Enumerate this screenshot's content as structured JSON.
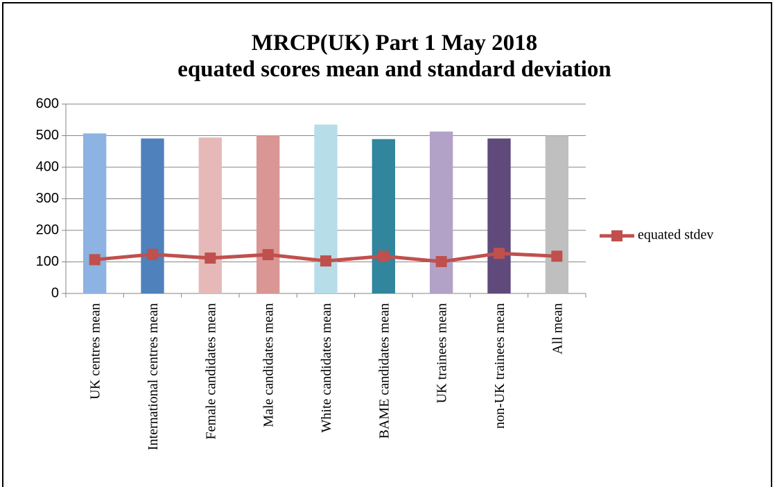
{
  "chart_data": {
    "type": "bar",
    "title": "MRCP(UK) Part 1 May 2018",
    "subtitle": "equated scores mean and standard deviation",
    "categories": [
      "UK centres mean",
      "International centres mean",
      "Female candidates mean",
      "Male candidates mean",
      "White candidates mean",
      "BAME candidates mean",
      "UK trainees mean",
      "non-UK trainees mean",
      "All mean"
    ],
    "series": [
      {
        "type": "bar",
        "colors": [
          "#8db3e2",
          "#4f81bd",
          "#e6b9b8",
          "#d99694",
          "#b7dde8",
          "#31859c",
          "#b3a2c7",
          "#604a7b",
          "#bfbfbf"
        ],
        "values": [
          507,
          491,
          494,
          501,
          535,
          489,
          513,
          491,
          500
        ]
      },
      {
        "type": "line",
        "name": "equated stdev",
        "color": "#c0504d",
        "values": [
          107,
          124,
          112,
          123,
          103,
          118,
          101,
          127,
          118
        ]
      }
    ],
    "ylim": [
      0,
      600
    ],
    "yticks": [
      0,
      100,
      200,
      300,
      400,
      500,
      600
    ],
    "grid": true,
    "legend": "right"
  }
}
